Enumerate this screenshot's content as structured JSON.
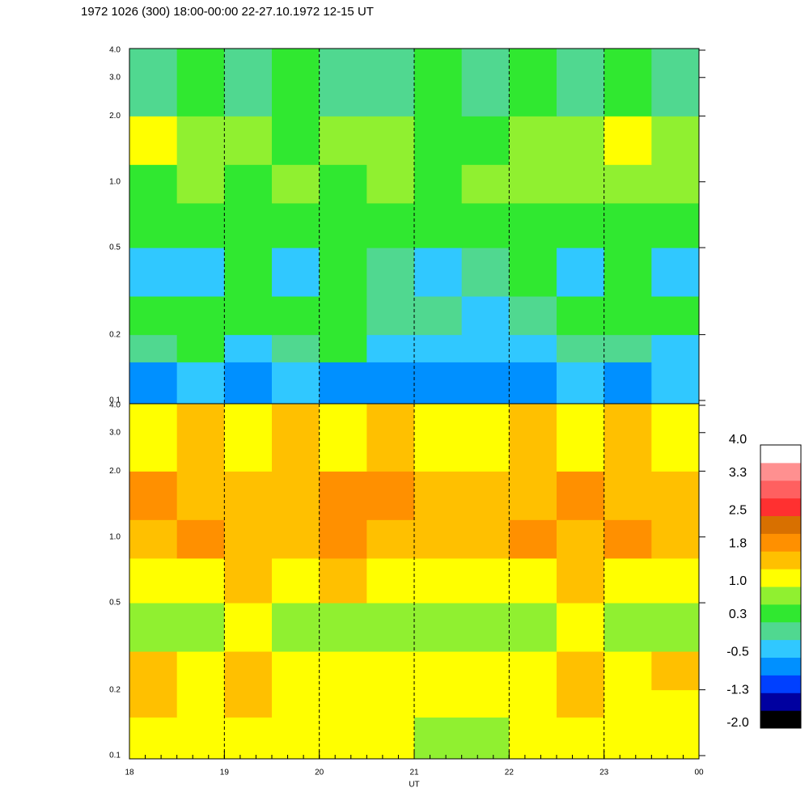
{
  "chart_data": {
    "type": "heatmap",
    "title": "1972 1026 (300) 18:00-00:00 22-27.10.1972  12-15 UT",
    "xlabel": "UT",
    "xlim": [
      18,
      24
    ],
    "xticks": [
      18,
      19,
      20,
      21,
      22,
      23,
      {
        "value": 24,
        "label": "00"
      }
    ],
    "ylim": [
      0.1,
      4.0
    ],
    "log_y": true,
    "yticks": [
      0.1,
      0.2,
      0.5,
      {
        "value": 1,
        "label": "1.0"
      },
      {
        "value": 2,
        "label": "2.0"
      },
      {
        "value": 3,
        "label": "3.0"
      },
      {
        "value": 4,
        "label": "4.0"
      }
    ],
    "grid": true,
    "xbins": [
      18,
      18.5,
      19,
      19.5,
      20,
      20.5,
      21,
      21.5,
      22,
      22.5,
      23,
      23.5,
      24
    ],
    "ybins": [
      0.1,
      0.15,
      0.2,
      0.3,
      0.5,
      0.8,
      1.2,
      2.0,
      4.0
    ],
    "panels": [
      {
        "z": [
          [
            -0.6,
            -0.5,
            -0.6,
            -0.5,
            -0.7,
            -0.6,
            -0.6,
            -0.7,
            -0.6,
            -0.5,
            -0.6,
            -0.5
          ],
          [
            0.0,
            0.3,
            -0.2,
            0.1,
            0.3,
            -0.3,
            -0.2,
            -0.4,
            -0.3,
            0.0,
            0.1,
            -0.2
          ],
          [
            0.4,
            0.4,
            0.3,
            0.4,
            0.3,
            0.2,
            0.0,
            -0.2,
            0.1,
            0.3,
            0.4,
            0.3
          ],
          [
            -0.3,
            -0.2,
            0.3,
            -0.2,
            0.3,
            0.1,
            -0.3,
            0.0,
            0.3,
            -0.2,
            0.3,
            -0.3
          ],
          [
            0.4,
            0.5,
            0.4,
            0.4,
            0.5,
            0.4,
            0.4,
            0.5,
            0.4,
            0.5,
            0.4,
            0.4
          ],
          [
            0.6,
            0.7,
            0.6,
            0.7,
            0.6,
            0.7,
            0.6,
            0.7,
            0.9,
            0.8,
            0.7,
            0.8
          ],
          [
            1.0,
            0.7,
            0.9,
            0.6,
            0.9,
            0.7,
            0.6,
            0.6,
            0.7,
            0.8,
            1.0,
            0.9
          ],
          [
            0.2,
            0.3,
            0.2,
            0.3,
            0.2,
            0.1,
            0.3,
            0.2,
            0.3,
            0.2,
            0.3,
            0.2
          ]
        ]
      },
      {
        "z": [
          [
            1.1,
            1.2,
            1.0,
            1.1,
            1.1,
            1.0,
            0.9,
            0.8,
            1.1,
            1.2,
            1.0,
            1.1
          ],
          [
            1.4,
            1.1,
            1.5,
            1.1,
            1.2,
            1.0,
            1.1,
            1.0,
            1.2,
            1.4,
            1.2,
            1.3
          ],
          [
            1.5,
            1.2,
            1.5,
            1.2,
            1.3,
            1.1,
            1.2,
            1.1,
            1.3,
            1.5,
            1.3,
            1.4
          ],
          [
            0.9,
            0.8,
            1.0,
            0.8,
            0.9,
            0.8,
            0.8,
            0.9,
            0.9,
            1.0,
            0.9,
            0.9
          ],
          [
            1.2,
            1.3,
            1.4,
            1.2,
            1.4,
            1.1,
            1.1,
            1.2,
            1.3,
            1.4,
            1.3,
            1.2
          ],
          [
            1.5,
            1.8,
            1.5,
            1.4,
            1.8,
            1.6,
            1.5,
            1.4,
            1.8,
            1.6,
            1.8,
            1.6
          ],
          [
            1.8,
            1.5,
            1.6,
            1.5,
            1.8,
            1.8,
            1.5,
            1.6,
            1.5,
            1.8,
            1.5,
            1.6
          ],
          [
            1.3,
            1.4,
            1.3,
            1.4,
            1.3,
            1.4,
            1.3,
            1.3,
            1.4,
            1.3,
            1.4,
            1.3
          ]
        ]
      }
    ],
    "colorbar": {
      "lim": [
        -2.0,
        4.0
      ],
      "colors": [
        "#000000",
        "#0000a0",
        "#0040ff",
        "#0090ff",
        "#30c8ff",
        "#50d890",
        "#30e830",
        "#90f030",
        "#ffff00",
        "#ffc000",
        "#ff9000",
        "#d87000",
        "#ff3030",
        "#ff6060",
        "#ff9090",
        "#ffffff"
      ],
      "ticks": [
        {
          "value": 4,
          "label": "4.0"
        },
        3.3,
        2.5,
        1.8,
        {
          "value": 1,
          "label": "1.0"
        },
        0.3,
        -0.5,
        -1.3,
        {
          "value": -2,
          "label": "-2.0"
        }
      ]
    }
  }
}
